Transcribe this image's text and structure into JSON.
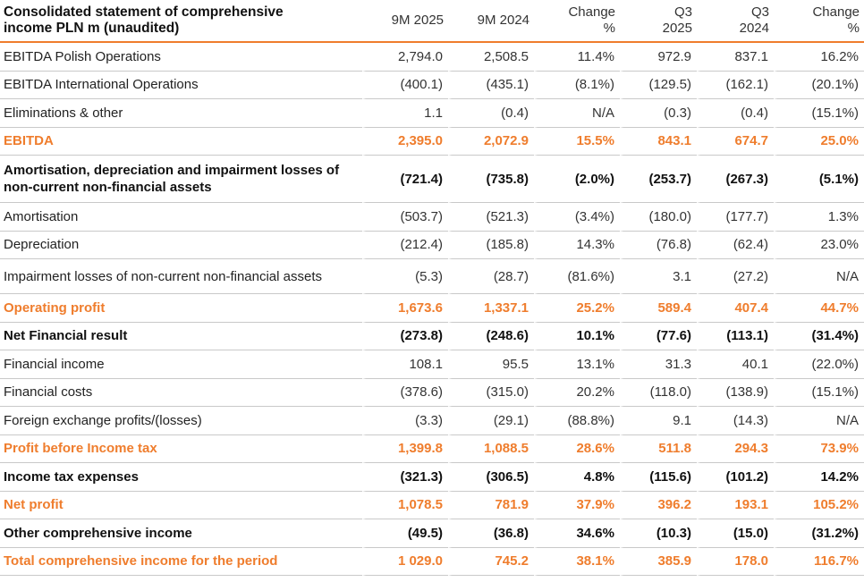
{
  "header": {
    "title_line1": "Consolidated statement of comprehensive",
    "title_line2": "income PLN m (unaudited)",
    "col_9m2025": "9M 2025",
    "col_9m2024": "9M 2024",
    "col_change1_a": "Change",
    "col_change1_b": "%",
    "col_q3_2025_a": "Q3",
    "col_q3_2025_b": "2025",
    "col_q3_2024_a": "Q3",
    "col_q3_2024_b": "2024",
    "col_change2_a": "Change",
    "col_change2_b": "%"
  },
  "rows": [
    {
      "label": "EBITDA Polish Operations",
      "v": [
        "2,794.0",
        "2,508.5",
        "11.4%",
        "972.9",
        "837.1",
        "16.2%"
      ]
    },
    {
      "label": "EBITDA International Operations",
      "v": [
        "(400.1)",
        "(435.1)",
        "(8.1%)",
        "(129.5)",
        "(162.1)",
        "(20.1%)"
      ]
    },
    {
      "label": "Eliminations & other",
      "v": [
        "1.1",
        "(0.4)",
        "N/A",
        "(0.3)",
        "(0.4)",
        "(15.1%)"
      ]
    },
    {
      "label": "EBITDA",
      "v": [
        "2,395.0",
        "2,072.9",
        "15.5%",
        "843.1",
        "674.7",
        "25.0%"
      ]
    },
    {
      "label": "Amortisation, depreciation and impairment losses of non-current non-financial assets",
      "v": [
        "(721.4)",
        "(735.8)",
        "(2.0%)",
        "(253.7)",
        "(267.3)",
        "(5.1%)"
      ]
    },
    {
      "label": "Amortisation",
      "v": [
        "(503.7)",
        "(521.3)",
        "(3.4%)",
        "(180.0)",
        "(177.7)",
        "1.3%"
      ]
    },
    {
      "label": "Depreciation",
      "v": [
        "(212.4)",
        "(185.8)",
        "14.3%",
        "(76.8)",
        "(62.4)",
        "23.0%"
      ]
    },
    {
      "label": "Impairment losses of non-current non-financial assets",
      "v": [
        "(5.3)",
        "(28.7)",
        "(81.6%)",
        "3.1",
        "(27.2)",
        "N/A"
      ]
    },
    {
      "label": "Operating profit",
      "v": [
        "1,673.6",
        "1,337.1",
        "25.2%",
        "589.4",
        "407.4",
        "44.7%"
      ]
    },
    {
      "label": "Net Financial result",
      "v": [
        "(273.8)",
        "(248.6)",
        "10.1%",
        "(77.6)",
        "(113.1)",
        "(31.4%)"
      ]
    },
    {
      "label": "Financial income",
      "v": [
        "108.1",
        "95.5",
        "13.1%",
        "31.3",
        "40.1",
        "(22.0%)"
      ]
    },
    {
      "label": "Financial costs",
      "v": [
        "(378.6)",
        "(315.0)",
        "20.2%",
        "(118.0)",
        "(138.9)",
        "(15.1%)"
      ]
    },
    {
      "label": "Foreign exchange profits/(losses)",
      "v": [
        "(3.3)",
        "(29.1)",
        "(88.8%)",
        "9.1",
        "(14.3)",
        "N/A"
      ]
    },
    {
      "label": "Profit before Income tax",
      "v": [
        "1,399.8",
        "1,088.5",
        "28.6%",
        "511.8",
        "294.3",
        "73.9%"
      ]
    },
    {
      "label": "Income tax expenses",
      "v": [
        "(321.3)",
        "(306.5)",
        "4.8%",
        "(115.6)",
        "(101.2)",
        "14.2%"
      ]
    },
    {
      "label": "Net profit",
      "v": [
        "1,078.5",
        "781.9",
        "37.9%",
        "396.2",
        "193.1",
        "105.2%"
      ]
    },
    {
      "label": "Other comprehensive income",
      "v": [
        "(49.5)",
        "(36.8)",
        "34.6%",
        "(10.3)",
        "(15.0)",
        "(31.2%)"
      ]
    },
    {
      "label": "Total comprehensive income for the period",
      "v": [
        "1 029.0",
        "745.2",
        "38.1%",
        "385.9",
        "178.0",
        "116.7%"
      ]
    }
  ],
  "colors": {
    "accent": "#ef7d2d",
    "rule": "#c9c9c9"
  }
}
